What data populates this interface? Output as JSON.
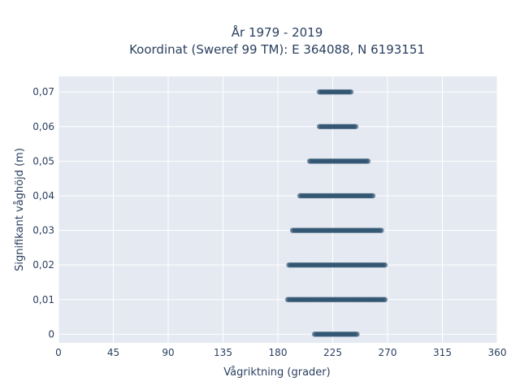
{
  "chart_data": {
    "type": "scatter",
    "title_line1": "År 1979 - 2019",
    "title_line2": "Koordinat (Sweref 99 TM): E 364088, N 6193151",
    "xlabel": "Vågriktning (grader)",
    "ylabel": "Signifikant våghöjd (m)",
    "xlim": [
      0,
      360
    ],
    "ylim": [
      -0.0025,
      0.0745
    ],
    "grid": true,
    "legend": "none",
    "x_ticks": [
      0,
      45,
      90,
      135,
      180,
      225,
      270,
      315,
      360
    ],
    "x_tick_labels": [
      "0",
      "45",
      "90",
      "135",
      "180",
      "225",
      "270",
      "315",
      "360"
    ],
    "y_ticks": [
      0,
      0.01,
      0.02,
      0.03,
      0.04,
      0.05,
      0.06,
      0.07
    ],
    "y_tick_labels": [
      "0",
      "0,01",
      "0,02",
      "0,03",
      "0,04",
      "0,05",
      "0,06",
      "0,07"
    ],
    "series": [
      {
        "marker_color": "#2e5470",
        "bands": [
          {
            "y": 0.0,
            "x_min": 210,
            "x_max": 245
          },
          {
            "y": 0.01,
            "x_min": 188,
            "x_max": 268
          },
          {
            "y": 0.02,
            "x_min": 189,
            "x_max": 268
          },
          {
            "y": 0.03,
            "x_min": 192,
            "x_max": 265
          },
          {
            "y": 0.04,
            "x_min": 198,
            "x_max": 258
          },
          {
            "y": 0.05,
            "x_min": 206,
            "x_max": 254
          },
          {
            "y": 0.06,
            "x_min": 214,
            "x_max": 244
          },
          {
            "y": 0.07,
            "x_min": 214,
            "x_max": 240
          }
        ]
      }
    ]
  },
  "colors": {
    "plot_background": "#e5e9f2",
    "grid": "#ffffff",
    "text": "#2a3f5f"
  }
}
